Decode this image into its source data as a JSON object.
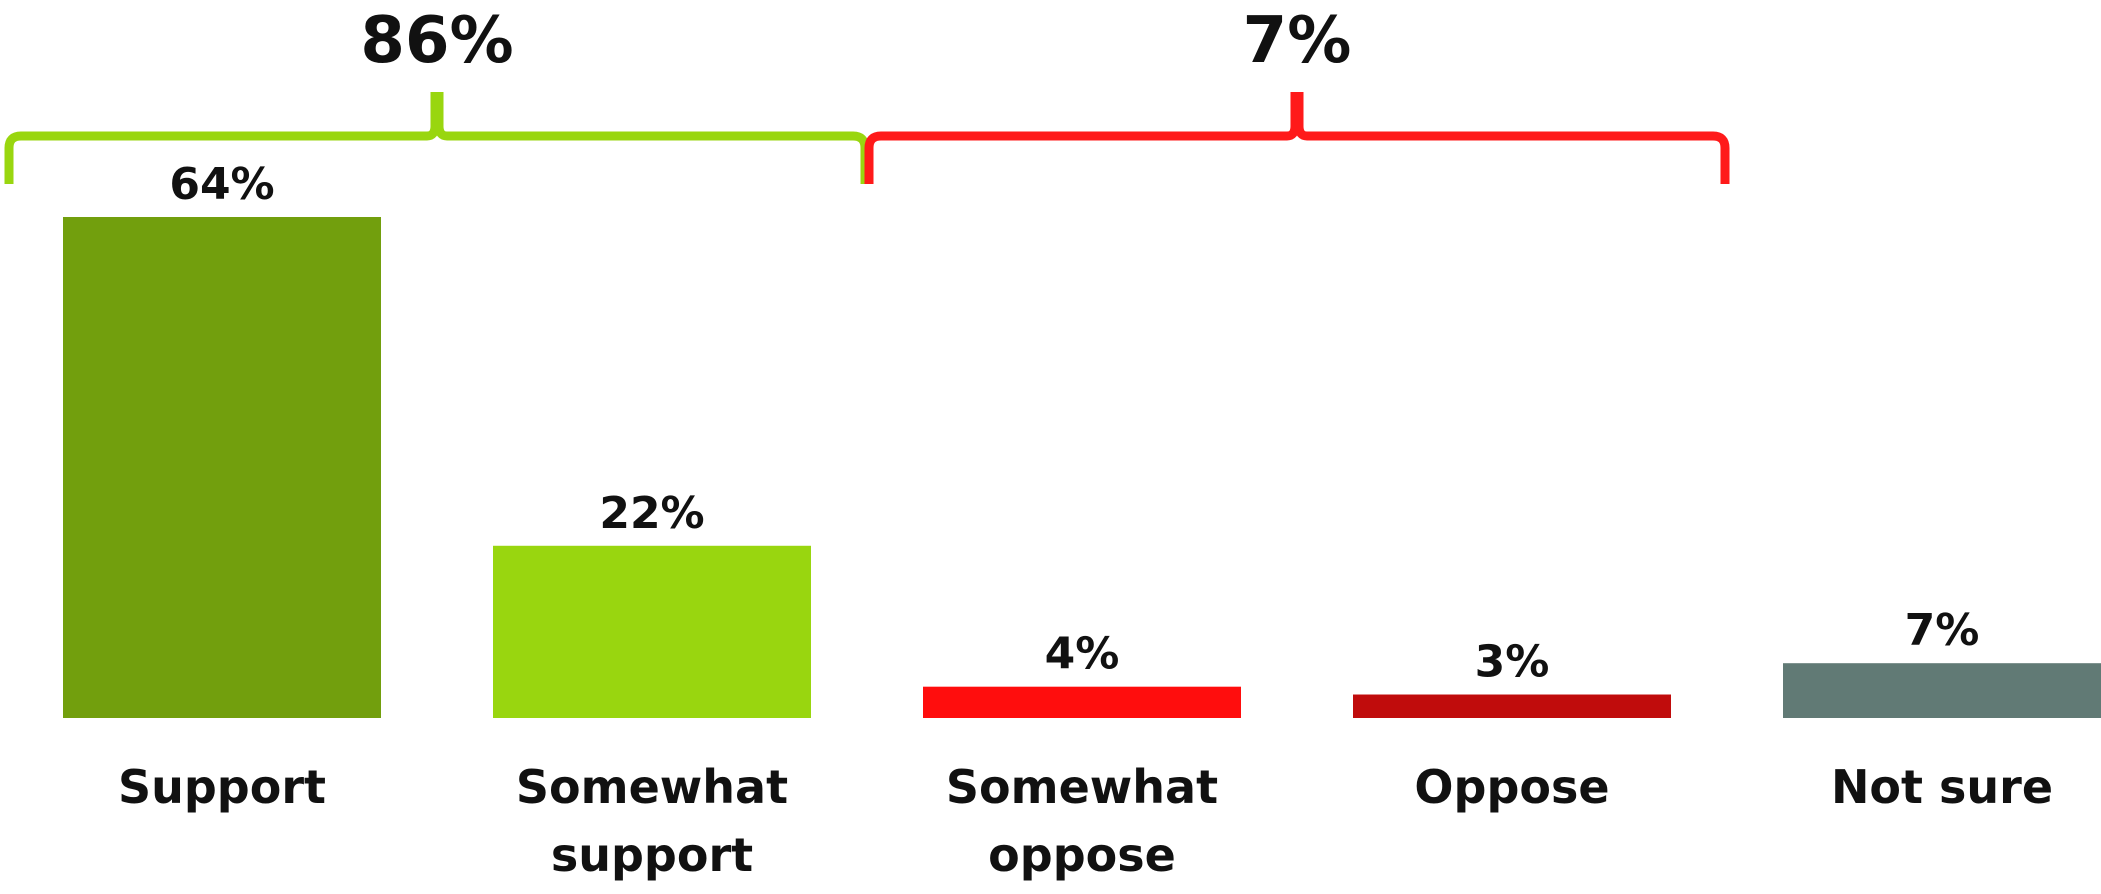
{
  "chart_data": {
    "type": "bar",
    "categories": [
      "Support",
      "Somewhat support",
      "Somewhat oppose",
      "Oppose",
      "Not sure"
    ],
    "category_lines": [
      [
        "Support"
      ],
      [
        "Somewhat",
        "support"
      ],
      [
        "Somewhat",
        "oppose"
      ],
      [
        "Oppose"
      ],
      [
        "Not sure"
      ]
    ],
    "values": [
      64,
      22,
      4,
      3,
      7
    ],
    "value_labels": [
      "64%",
      "22%",
      "4%",
      "3%",
      "7%"
    ],
    "colors": [
      "#729f0d",
      "#99d60f",
      "#ff0d0d",
      "#c00c0c",
      "#617a75"
    ],
    "ylim": [
      0,
      64
    ],
    "groups": [
      {
        "label": "86%",
        "value": 86,
        "categories": [
          0,
          1
        ],
        "color": "#99d60f"
      },
      {
        "label": "7%",
        "value": 7,
        "categories": [
          2,
          3
        ],
        "color": "#ff1a1a"
      }
    ],
    "title": "",
    "xlabel": "",
    "ylabel": "",
    "grid": false,
    "legend": "none"
  }
}
